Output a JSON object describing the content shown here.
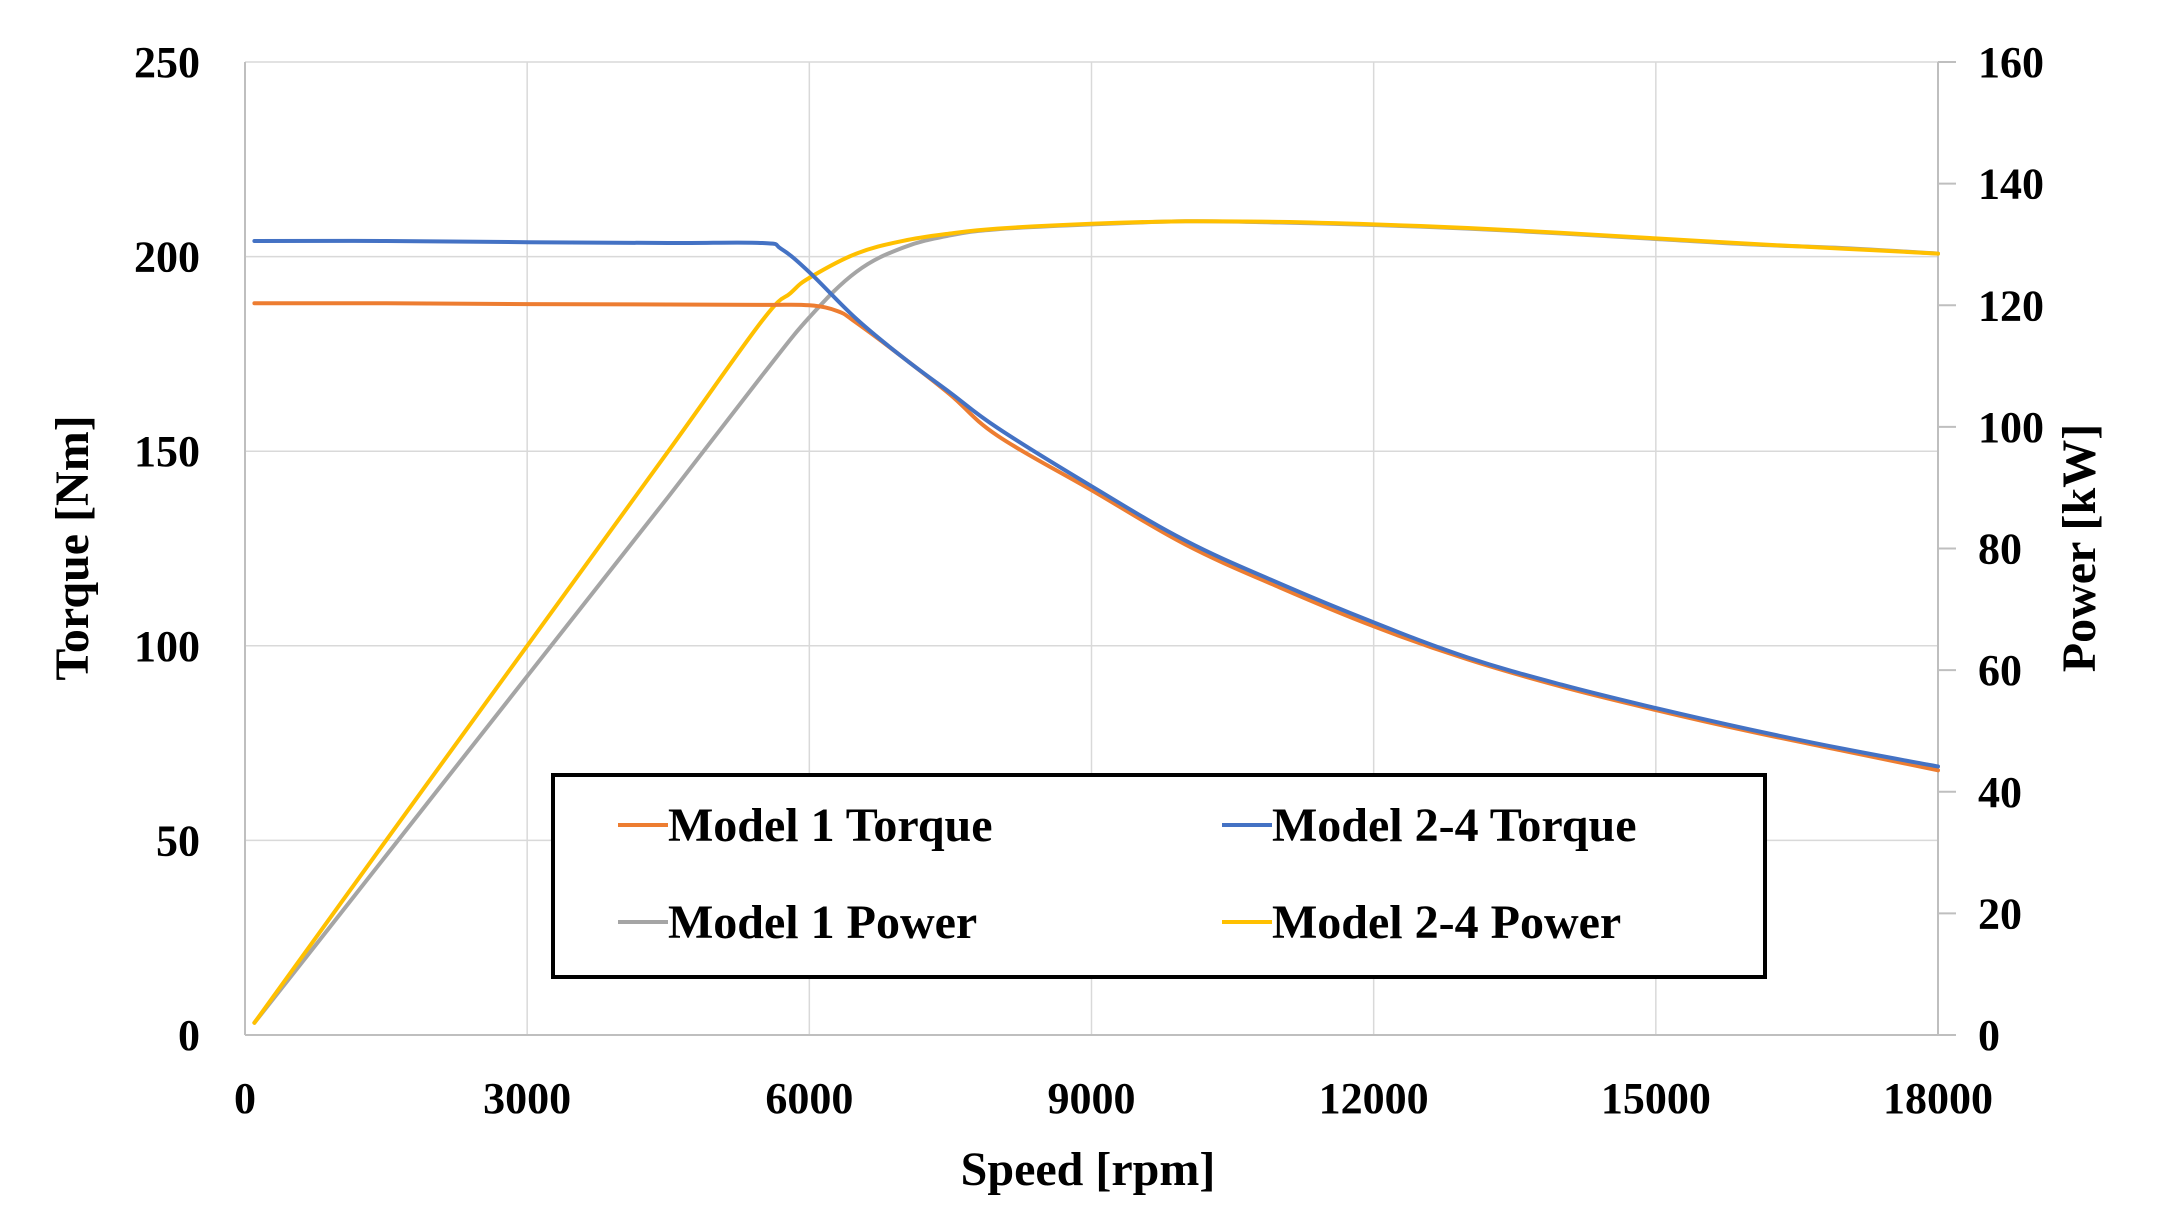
{
  "chart_data": {
    "type": "line",
    "title": "",
    "xlabel": "Speed [rpm]",
    "ylabel_left": "Torque [Nm]",
    "ylabel_right": "Power [kW]",
    "xlim": [
      0,
      18000
    ],
    "ylim_left": [
      0,
      250
    ],
    "ylim_right": [
      0,
      160
    ],
    "xticks": [
      "0",
      "3000",
      "6000",
      "9000",
      "12000",
      "15000",
      "18000"
    ],
    "yticks_left": [
      "0",
      "50",
      "100",
      "150",
      "200",
      "250"
    ],
    "yticks_right": [
      "0",
      "20",
      "40",
      "60",
      "80",
      "100",
      "120",
      "140",
      "160"
    ],
    "grid": true,
    "legend_position": "lower-center",
    "series": [
      {
        "name": "Model 1 Torque",
        "axis": "left",
        "color": "#ED7D31",
        "x": [
          100,
          1500,
          3000,
          4500,
          5500,
          6000,
          6300,
          6500,
          7000,
          7500,
          8000,
          9000,
          10000,
          11000,
          12000,
          13000,
          14000,
          15000,
          16000,
          17000,
          18000
        ],
        "y": [
          188,
          188,
          187.8,
          187.7,
          187.6,
          187.5,
          186,
          183,
          174,
          164.5,
          154,
          140,
          126,
          115,
          105,
          96.5,
          89.5,
          83.5,
          78,
          73,
          68
        ]
      },
      {
        "name": "Model 2-4 Torque",
        "axis": "left",
        "color": "#4472C4",
        "x": [
          100,
          1500,
          3000,
          4500,
          5500,
          5700,
          6000,
          6500,
          7000,
          7500,
          8000,
          9000,
          10000,
          11000,
          12000,
          13000,
          14000,
          15000,
          16000,
          17000,
          18000
        ],
        "y": [
          204,
          204,
          203.7,
          203.5,
          203.5,
          202,
          196,
          184,
          174,
          165,
          156,
          141,
          127,
          116,
          106,
          97,
          90,
          84,
          78.5,
          73.5,
          69
        ]
      },
      {
        "name": "Model 1 Power",
        "axis": "right",
        "color": "#A5A5A5",
        "x": [
          100,
          1500,
          3000,
          4500,
          5500,
          6000,
          6500,
          7000,
          7500,
          8000,
          9000,
          10000,
          11000,
          12000,
          13000,
          14000,
          15000,
          16000,
          17000,
          18000
        ],
        "y": [
          2,
          29.5,
          59,
          88.5,
          108.5,
          118,
          125.5,
          129.5,
          131.5,
          132.5,
          133.3,
          133.8,
          133.6,
          133.2,
          132.6,
          131.8,
          130.9,
          130,
          129.4,
          128.5
        ]
      },
      {
        "name": "Model 2-4 Power",
        "axis": "right",
        "color": "#FFC000",
        "x": [
          100,
          1500,
          3000,
          4500,
          5500,
          5800,
          6000,
          6500,
          7000,
          7500,
          8000,
          9000,
          10000,
          11000,
          12000,
          13000,
          14000,
          15000,
          16000,
          17000,
          18000
        ],
        "y": [
          2,
          32,
          64,
          96,
          117.5,
          122,
          124.5,
          128.5,
          130.6,
          131.8,
          132.6,
          133.4,
          133.8,
          133.7,
          133.3,
          132.7,
          131.9,
          131.0,
          130.1,
          129.3,
          128.5
        ]
      }
    ]
  }
}
